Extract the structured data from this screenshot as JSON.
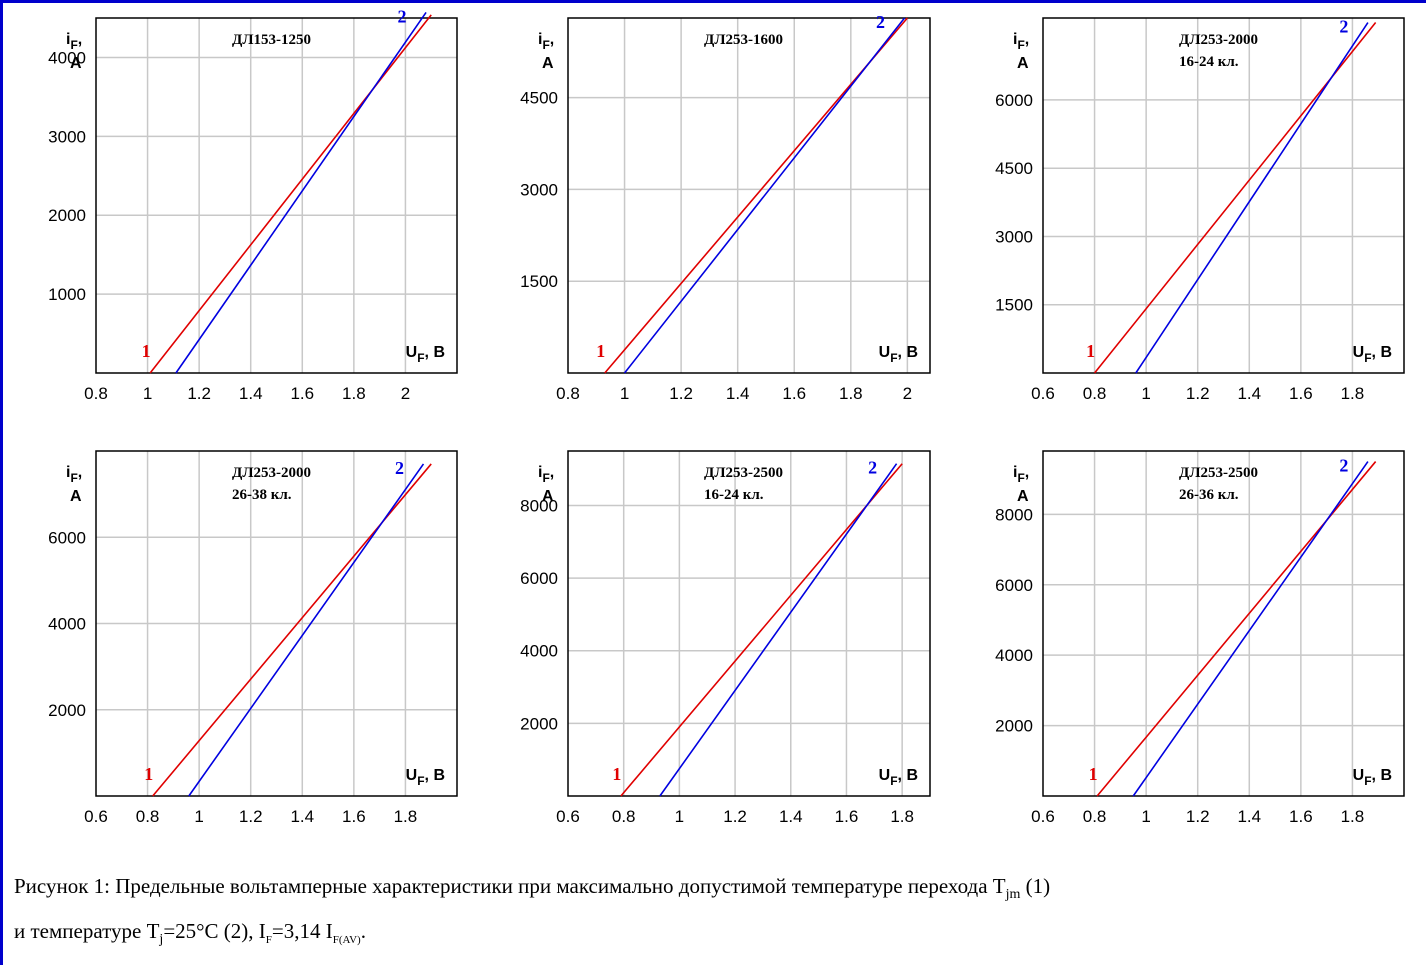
{
  "caption": {
    "line1_text": "Рисунок 1: Предельные вольтамперные характеристики при максимально допустимой температуре перехода T",
    "line1_sub": "jm",
    "line1_end": " (1)",
    "line2_a": "и температуре T",
    "line2_sub1": "j",
    "line2_b": "=25°C (2), I",
    "line2_sub2": "F",
    "line2_c": "=3,14 I",
    "line2_sub3": "F(AV)",
    "line2_d": "."
  },
  "colors": {
    "series1": "#e00000",
    "series2": "#0000e0",
    "grid": "#c8c8c8",
    "frame": "#0000cc"
  },
  "chart_data": [
    {
      "type": "line",
      "title": [
        "ДЛ153-1250"
      ],
      "xlabel": "U",
      "xlabel_sub": "F",
      "xlabel_unit": ", В",
      "ylabel": "i",
      "ylabel_sub": "F",
      "ylabel_unit": "А",
      "xlim": [
        0.8,
        2.2
      ],
      "ylim": [
        0,
        4500
      ],
      "xticks": [
        0.8,
        1,
        1.2,
        1.4,
        1.6,
        1.8,
        2
      ],
      "xtick_labels": [
        "0.8",
        "1",
        "1.2",
        "1.4",
        "1.6",
        "1.8",
        "2"
      ],
      "yticks": [
        1000,
        2000,
        3000,
        4000
      ],
      "ytick_labels": [
        "1000",
        "2000",
        "3000",
        "4000"
      ],
      "grid": true,
      "series": [
        {
          "label": "1",
          "x": [
            1.01,
            2.1
          ],
          "y": [
            0,
            4540
          ]
        },
        {
          "label": "2",
          "x": [
            1.11,
            2.08
          ],
          "y": [
            0,
            4570
          ]
        }
      ]
    },
    {
      "type": "line",
      "title": [
        "ДЛ253-1600"
      ],
      "xlabel": "U",
      "xlabel_sub": "F",
      "xlabel_unit": ", В",
      "ylabel": "i",
      "ylabel_sub": "F",
      "ylabel_unit": "А",
      "xlim": [
        0.8,
        2.08
      ],
      "ylim": [
        0,
        5800
      ],
      "xticks": [
        0.8,
        1,
        1.2,
        1.4,
        1.6,
        1.8,
        2
      ],
      "xtick_labels": [
        "0.8",
        "1",
        "1.2",
        "1.4",
        "1.6",
        "1.8",
        "2"
      ],
      "yticks": [
        1500,
        3000,
        4500
      ],
      "ytick_labels": [
        "1500",
        "3000",
        "4500"
      ],
      "grid": true,
      "series": [
        {
          "label": "1",
          "x": [
            0.93,
            2.0
          ],
          "y": [
            0,
            5800
          ]
        },
        {
          "label": "2",
          "x": [
            1.0,
            1.99
          ],
          "y": [
            0,
            5800
          ]
        }
      ]
    },
    {
      "type": "line",
      "title": [
        "ДЛ253-2000",
        "16-24 кл."
      ],
      "xlabel": "U",
      "xlabel_sub": "F",
      "xlabel_unit": ", В",
      "ylabel": "i",
      "ylabel_sub": "F",
      "ylabel_unit": "А",
      "xlim": [
        0.6,
        2.0
      ],
      "ylim": [
        0,
        7800
      ],
      "xticks": [
        0.6,
        0.8,
        1,
        1.2,
        1.4,
        1.6,
        1.8
      ],
      "xtick_labels": [
        "0.6",
        "0.8",
        "1",
        "1.2",
        "1.4",
        "1.6",
        "1.8"
      ],
      "yticks": [
        1500,
        3000,
        4500,
        6000
      ],
      "ytick_labels": [
        "1500",
        "3000",
        "4500",
        "6000"
      ],
      "grid": true,
      "series": [
        {
          "label": "1",
          "x": [
            0.8,
            1.89
          ],
          "y": [
            0,
            7700
          ]
        },
        {
          "label": "2",
          "x": [
            0.96,
            1.86
          ],
          "y": [
            0,
            7700
          ]
        }
      ]
    },
    {
      "type": "line",
      "title": [
        "ДЛ253-2000",
        "26-38 кл."
      ],
      "xlabel": "U",
      "xlabel_sub": "F",
      "xlabel_unit": ", В",
      "ylabel": "i",
      "ylabel_sub": "F",
      "ylabel_unit": "А",
      "xlim": [
        0.6,
        2.0
      ],
      "ylim": [
        0,
        8000
      ],
      "xticks": [
        0.6,
        0.8,
        1,
        1.2,
        1.4,
        1.6,
        1.8
      ],
      "xtick_labels": [
        "0.6",
        "0.8",
        "1",
        "1.2",
        "1.4",
        "1.6",
        "1.8"
      ],
      "yticks": [
        2000,
        4000,
        6000
      ],
      "ytick_labels": [
        "2000",
        "4000",
        "6000"
      ],
      "grid": true,
      "series": [
        {
          "label": "1",
          "x": [
            0.82,
            1.9
          ],
          "y": [
            0,
            7700
          ]
        },
        {
          "label": "2",
          "x": [
            0.96,
            1.87
          ],
          "y": [
            0,
            7700
          ]
        }
      ]
    },
    {
      "type": "line",
      "title": [
        "ДЛ253-2500",
        "16-24 кл."
      ],
      "xlabel": "U",
      "xlabel_sub": "F",
      "xlabel_unit": ", В",
      "ylabel": "i",
      "ylabel_sub": "F",
      "ylabel_unit": "А",
      "xlim": [
        0.6,
        1.9
      ],
      "ylim": [
        0,
        9500
      ],
      "xticks": [
        0.6,
        0.8,
        1,
        1.2,
        1.4,
        1.6,
        1.8
      ],
      "xtick_labels": [
        "0.6",
        "0.8",
        "1",
        "1.2",
        "1.4",
        "1.6",
        "1.8"
      ],
      "yticks": [
        2000,
        4000,
        6000,
        8000
      ],
      "ytick_labels": [
        "2000",
        "4000",
        "6000",
        "8000"
      ],
      "grid": true,
      "series": [
        {
          "label": "1",
          "x": [
            0.79,
            1.8
          ],
          "y": [
            0,
            9150
          ]
        },
        {
          "label": "2",
          "x": [
            0.93,
            1.78
          ],
          "y": [
            0,
            9150
          ]
        }
      ]
    },
    {
      "type": "line",
      "title": [
        "ДЛ253-2500",
        "26-36 кл."
      ],
      "xlabel": "U",
      "xlabel_sub": "F",
      "xlabel_unit": ", В",
      "ylabel": "i",
      "ylabel_sub": "F",
      "ylabel_unit": "А",
      "xlim": [
        0.6,
        2.0
      ],
      "ylim": [
        0,
        9800
      ],
      "xticks": [
        0.6,
        0.8,
        1,
        1.2,
        1.4,
        1.6,
        1.8
      ],
      "xtick_labels": [
        "0.6",
        "0.8",
        "1",
        "1.2",
        "1.4",
        "1.6",
        "1.8"
      ],
      "yticks": [
        2000,
        4000,
        6000,
        8000
      ],
      "ytick_labels": [
        "2000",
        "4000",
        "6000",
        "8000"
      ],
      "grid": true,
      "series": [
        {
          "label": "1",
          "x": [
            0.81,
            1.89
          ],
          "y": [
            0,
            9500
          ]
        },
        {
          "label": "2",
          "x": [
            0.95,
            1.86
          ],
          "y": [
            0,
            9500
          ]
        }
      ]
    }
  ]
}
